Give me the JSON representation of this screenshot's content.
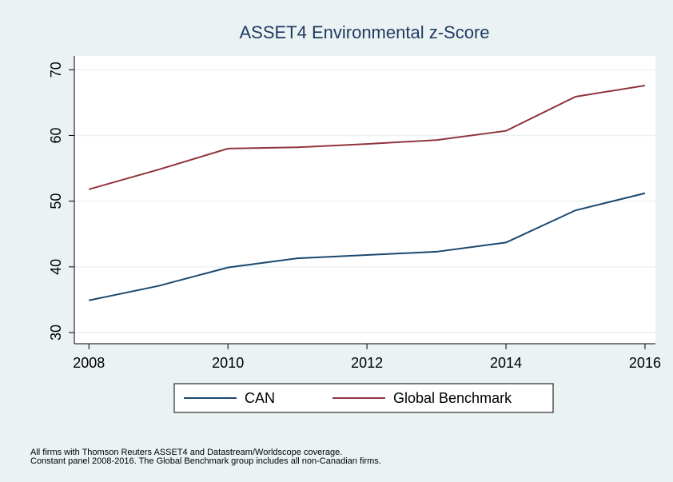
{
  "chart_data": {
    "type": "line",
    "title": "ASSET4 Environmental z-Score",
    "x": [
      2008,
      2009,
      2010,
      2011,
      2012,
      2013,
      2014,
      2015,
      2016
    ],
    "series": [
      {
        "name": "CAN",
        "color": "#1a476f",
        "values": [
          34.9,
          37.1,
          39.9,
          41.3,
          41.8,
          42.3,
          43.7,
          48.6,
          51.2
        ]
      },
      {
        "name": "Global Benchmark",
        "color": "#90353b",
        "values": [
          51.8,
          54.8,
          58.0,
          58.2,
          58.7,
          59.3,
          60.7,
          65.9,
          67.6
        ]
      }
    ],
    "xlim": [
      2007.79,
      2016.15
    ],
    "xticks": [
      2008,
      2010,
      2012,
      2014,
      2016
    ],
    "ylim": [
      28.3,
      72.1
    ],
    "yticks": [
      30,
      40,
      50,
      60,
      70
    ],
    "grid": true,
    "legend": "bottom",
    "notes": [
      "All firms with Thomson Reuters ASSET4 and Datastream/Worldscope coverage.",
      "Constant panel 2008-2016. The Global Benchmark group includes all non-Canadian firms."
    ]
  }
}
